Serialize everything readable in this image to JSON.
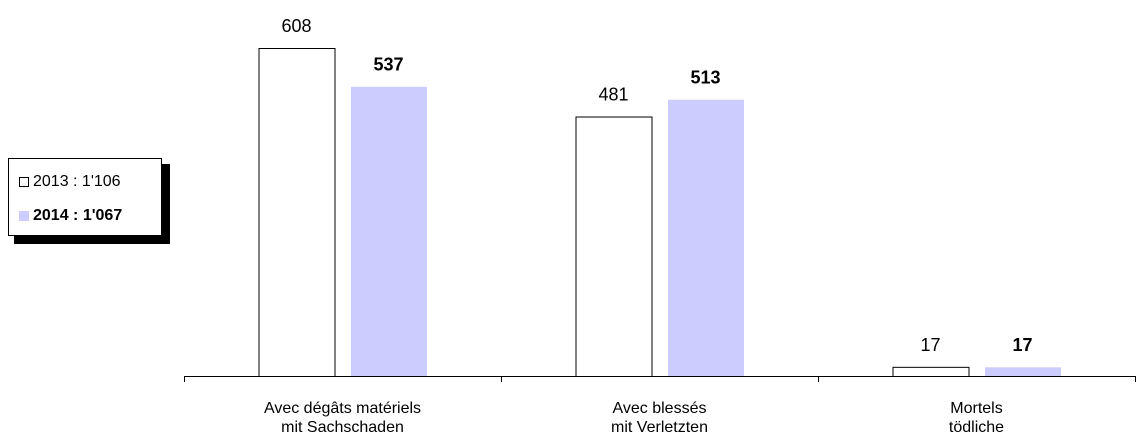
{
  "chart_data": {
    "type": "bar",
    "categories": [
      [
        "Avec dégâts matériels",
        "mit Sachschaden"
      ],
      [
        "Avec blessés",
        "mit Verletzten"
      ],
      [
        "Mortels",
        "tödliche"
      ]
    ],
    "series": [
      {
        "name": "2013 : 1'106",
        "values": [
          608,
          481,
          17
        ],
        "fill": "#ffffff",
        "stroke": "#000000",
        "label_bold": false
      },
      {
        "name": "2014 : 1'067",
        "values": [
          537,
          513,
          17
        ],
        "fill": "#ccccff",
        "stroke": "none",
        "label_bold": true
      }
    ],
    "ylim": [
      0,
      608
    ],
    "grid": false,
    "legend": "left"
  }
}
